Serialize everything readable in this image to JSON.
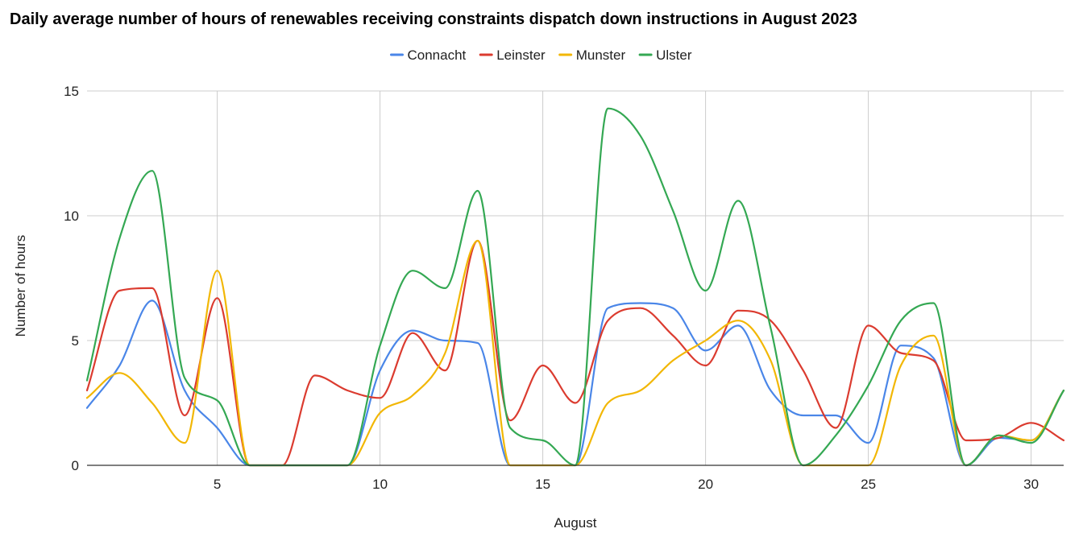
{
  "chart_data": {
    "type": "line",
    "title": "Daily average number of hours of renewables receiving constraints dispatch down instructions in August 2023",
    "xlabel": "August",
    "ylabel": "Number of hours",
    "xlim": [
      1,
      31
    ],
    "ylim": [
      0,
      15
    ],
    "x_ticks": [
      5,
      10,
      15,
      20,
      25,
      30
    ],
    "y_ticks": [
      0,
      5,
      10,
      15
    ],
    "grid": true,
    "legend_position": "top",
    "x": [
      1,
      2,
      3,
      4,
      5,
      6,
      7,
      8,
      9,
      10,
      11,
      12,
      13,
      14,
      15,
      16,
      17,
      18,
      19,
      20,
      21,
      22,
      23,
      24,
      25,
      26,
      27,
      28,
      29,
      30,
      31
    ],
    "series": [
      {
        "name": "Connacht",
        "color": "#4a86e8",
        "values": [
          2.3,
          4.0,
          6.6,
          3.0,
          1.5,
          0,
          0,
          0,
          0,
          3.8,
          5.4,
          5.0,
          4.9,
          0,
          0,
          0,
          6.3,
          6.5,
          6.3,
          4.6,
          5.6,
          3.0,
          2.0,
          2.0,
          0.9,
          4.8,
          4.3,
          0,
          1.1,
          1.0,
          3.0
        ]
      },
      {
        "name": "Leinster",
        "color": "#db3b2f",
        "values": [
          3.0,
          7.0,
          7.1,
          2.0,
          6.7,
          0,
          0,
          3.6,
          3.0,
          2.7,
          5.3,
          3.8,
          9.0,
          1.8,
          4.0,
          2.5,
          5.8,
          6.3,
          5.2,
          4.0,
          6.2,
          5.8,
          3.8,
          1.5,
          5.6,
          4.5,
          4.2,
          1.0,
          1.1,
          1.7,
          1.0
        ]
      },
      {
        "name": "Munster",
        "color": "#f2b705",
        "values": [
          2.7,
          3.7,
          2.5,
          0.9,
          7.8,
          0,
          0,
          0,
          0,
          2.1,
          2.8,
          4.5,
          9.0,
          0,
          0,
          0,
          2.5,
          3.0,
          4.2,
          5.0,
          5.8,
          4.2,
          0,
          0,
          0,
          4.0,
          5.2,
          0,
          1.2,
          1.0,
          3.0
        ]
      },
      {
        "name": "Ulster",
        "color": "#34a853",
        "values": [
          3.4,
          9.1,
          11.8,
          3.5,
          2.6,
          0,
          0,
          0,
          0,
          4.8,
          7.8,
          7.1,
          11.0,
          1.5,
          1.0,
          0,
          14.3,
          13.2,
          10.2,
          7.0,
          10.6,
          5.5,
          0,
          1.2,
          3.2,
          5.8,
          6.5,
          0,
          1.2,
          0.9,
          3.0
        ]
      }
    ]
  }
}
